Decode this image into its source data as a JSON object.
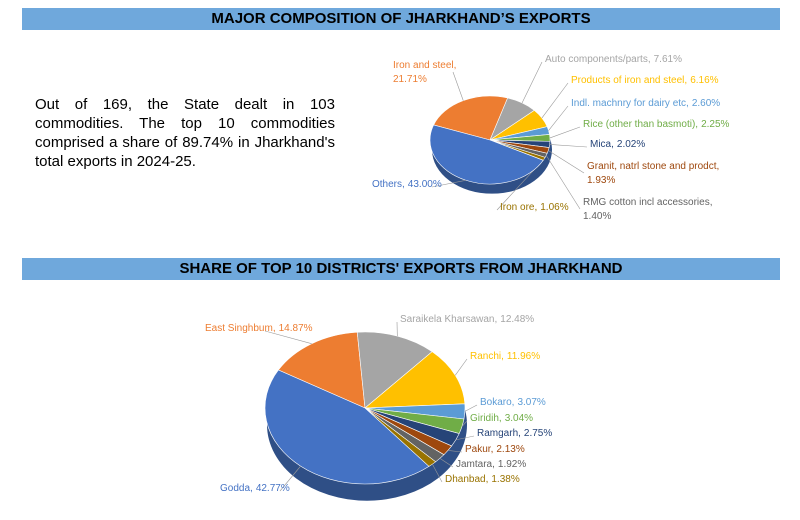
{
  "text": "Out of 169, the State dealt in 103 commodities. The top 10 commodities comprised a share of 89.74% in Jharkhand's total exports in 2024-25.",
  "chart_data": [
    {
      "type": "pie",
      "title": "MAJOR COMPOSITION OF JHARKHAND’S EXPORTS",
      "categories": [
        "Iron and steel,",
        "Auto components/parts,",
        "Products of iron and steel,",
        "Indl. machnry for dairy etc,",
        "Rice (other than basmoti),",
        "Mica,",
        "Granit, natrl stone and prodct,",
        "RMG cotton incl accessories,",
        "Iron ore,",
        "Others,"
      ],
      "values": [
        21.71,
        7.61,
        6.16,
        2.6,
        2.25,
        2.02,
        1.93,
        1.4,
        1.06,
        43.0
      ],
      "value_labels": [
        "21.71%",
        "7.61%",
        "6.16%",
        "2.60%",
        "2.25%",
        "2.02%",
        "1.93%",
        "1.40%",
        "1.06%",
        "43.00%"
      ],
      "colors": [
        "#ed7d31",
        "#a5a5a5",
        "#ffc000",
        "#5b9bd5",
        "#70ad47",
        "#264478",
        "#9e480e",
        "#636363",
        "#997300",
        "#4472c4"
      ]
    },
    {
      "type": "pie",
      "title": "SHARE OF TOP 10 DISTRICTS' EXPORTS FROM JHARKHAND",
      "categories": [
        "East Singhbum,",
        "Saraikela Kharsawan,",
        "Ranchi,",
        "Bokaro,",
        "Giridih,",
        "Ramgarh,",
        "Pakur,",
        "Jamtara,",
        "Dhanbad,",
        "Godda,"
      ],
      "values": [
        14.87,
        12.48,
        11.96,
        3.07,
        3.04,
        2.75,
        2.13,
        1.92,
        1.38,
        42.77
      ],
      "value_labels": [
        "14.87%",
        "12.48%",
        "11.96%",
        "3.07%",
        "3.04%",
        "2.75%",
        "2.13%",
        "1.92%",
        "1.38%",
        "42.77%"
      ],
      "colors": [
        "#ed7d31",
        "#a5a5a5",
        "#ffc000",
        "#5b9bd5",
        "#70ad47",
        "#264478",
        "#9e480e",
        "#636363",
        "#997300",
        "#4472c4"
      ]
    }
  ]
}
